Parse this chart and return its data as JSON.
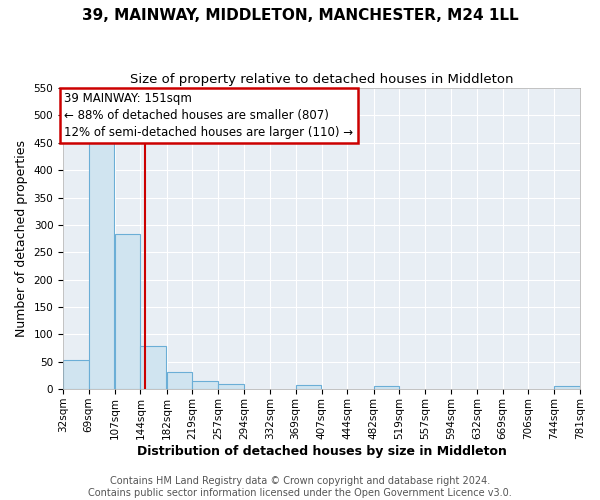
{
  "title": "39, MAINWAY, MIDDLETON, MANCHESTER, M24 1LL",
  "subtitle": "Size of property relative to detached houses in Middleton",
  "xlabel": "Distribution of detached houses by size in Middleton",
  "ylabel": "Number of detached properties",
  "bin_edges": [
    32,
    69,
    107,
    144,
    182,
    219,
    257,
    294,
    332,
    369,
    407,
    444,
    482,
    519,
    557,
    594,
    632,
    669,
    706,
    744,
    781
  ],
  "bin_counts": [
    53,
    450,
    283,
    78,
    32,
    15,
    10,
    0,
    0,
    8,
    0,
    0,
    5,
    0,
    0,
    0,
    0,
    0,
    0,
    5
  ],
  "bar_color": "#d0e4f0",
  "bar_edge_color": "#6baed6",
  "vline_x": 151,
  "vline_color": "#cc0000",
  "annotation_box_color": "#cc0000",
  "annotation_text_line1": "39 MAINWAY: 151sqm",
  "annotation_text_line2": "← 88% of detached houses are smaller (807)",
  "annotation_text_line3": "12% of semi-detached houses are larger (110) →",
  "ylim": [
    0,
    550
  ],
  "yticks": [
    0,
    50,
    100,
    150,
    200,
    250,
    300,
    350,
    400,
    450,
    500,
    550
  ],
  "tick_labels": [
    "32sqm",
    "69sqm",
    "107sqm",
    "144sqm",
    "182sqm",
    "219sqm",
    "257sqm",
    "294sqm",
    "332sqm",
    "369sqm",
    "407sqm",
    "444sqm",
    "482sqm",
    "519sqm",
    "557sqm",
    "594sqm",
    "632sqm",
    "669sqm",
    "706sqm",
    "744sqm",
    "781sqm"
  ],
  "footer_line1": "Contains HM Land Registry data © Crown copyright and database right 2024.",
  "footer_line2": "Contains public sector information licensed under the Open Government Licence v3.0.",
  "background_color": "#ffffff",
  "plot_bg_color": "#e8eef4",
  "grid_color": "#ffffff",
  "title_fontsize": 11,
  "subtitle_fontsize": 9.5,
  "axis_label_fontsize": 9,
  "tick_fontsize": 7.5,
  "footer_fontsize": 7,
  "annot_fontsize": 8.5
}
